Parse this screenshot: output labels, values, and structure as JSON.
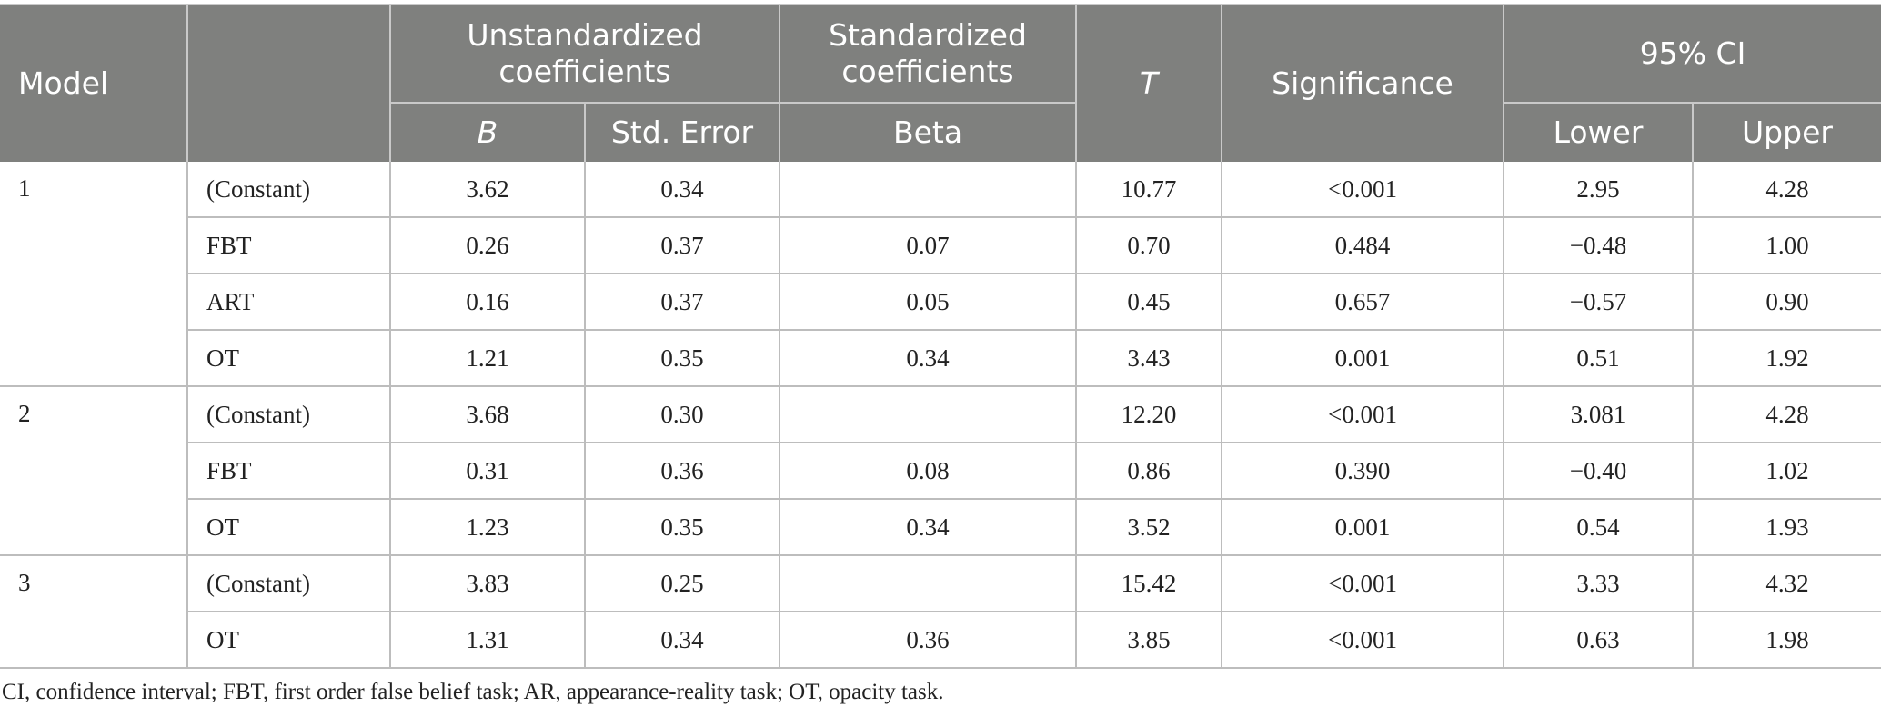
{
  "table": {
    "headers": {
      "model": "Model",
      "unstandardized": "Unstandardized coefficients",
      "standardized": "Standardized coefficients",
      "t": "T",
      "significance": "Significance",
      "ci": "95% CI",
      "b": "B",
      "std_error": "Std. Error",
      "beta": "Beta",
      "lower": "Lower",
      "upper": "Upper"
    },
    "models": [
      {
        "model": "1",
        "rows": [
          {
            "predictor": "(Constant)",
            "b": "3.62",
            "se": "0.34",
            "beta": "",
            "t": "10.77",
            "sig": "<0.001",
            "lower": "2.95",
            "upper": "4.28"
          },
          {
            "predictor": "FBT",
            "b": "0.26",
            "se": "0.37",
            "beta": "0.07",
            "t": "0.70",
            "sig": "0.484",
            "lower": "−0.48",
            "upper": "1.00"
          },
          {
            "predictor": "ART",
            "b": "0.16",
            "se": "0.37",
            "beta": "0.05",
            "t": "0.45",
            "sig": "0.657",
            "lower": "−0.57",
            "upper": "0.90"
          },
          {
            "predictor": "OT",
            "b": "1.21",
            "se": "0.35",
            "beta": "0.34",
            "t": "3.43",
            "sig": "0.001",
            "lower": "0.51",
            "upper": "1.92"
          }
        ]
      },
      {
        "model": "2",
        "rows": [
          {
            "predictor": "(Constant)",
            "b": "3.68",
            "se": "0.30",
            "beta": "",
            "t": "12.20",
            "sig": "<0.001",
            "lower": "3.081",
            "upper": "4.28"
          },
          {
            "predictor": "FBT",
            "b": "0.31",
            "se": "0.36",
            "beta": "0.08",
            "t": "0.86",
            "sig": "0.390",
            "lower": "−0.40",
            "upper": "1.02"
          },
          {
            "predictor": "OT",
            "b": "1.23",
            "se": "0.35",
            "beta": "0.34",
            "t": "3.52",
            "sig": "0.001",
            "lower": "0.54",
            "upper": "1.93"
          }
        ]
      },
      {
        "model": "3",
        "rows": [
          {
            "predictor": "(Constant)",
            "b": "3.83",
            "se": "0.25",
            "beta": "",
            "t": "15.42",
            "sig": "<0.001",
            "lower": "3.33",
            "upper": "4.32"
          },
          {
            "predictor": "OT",
            "b": "1.31",
            "se": "0.34",
            "beta": "0.36",
            "t": "3.85",
            "sig": "<0.001",
            "lower": "0.63",
            "upper": "1.98"
          }
        ]
      }
    ]
  },
  "footnote": "CI, confidence interval; FBT, first order false belief task; AR, appearance-reality task; OT, opacity task."
}
